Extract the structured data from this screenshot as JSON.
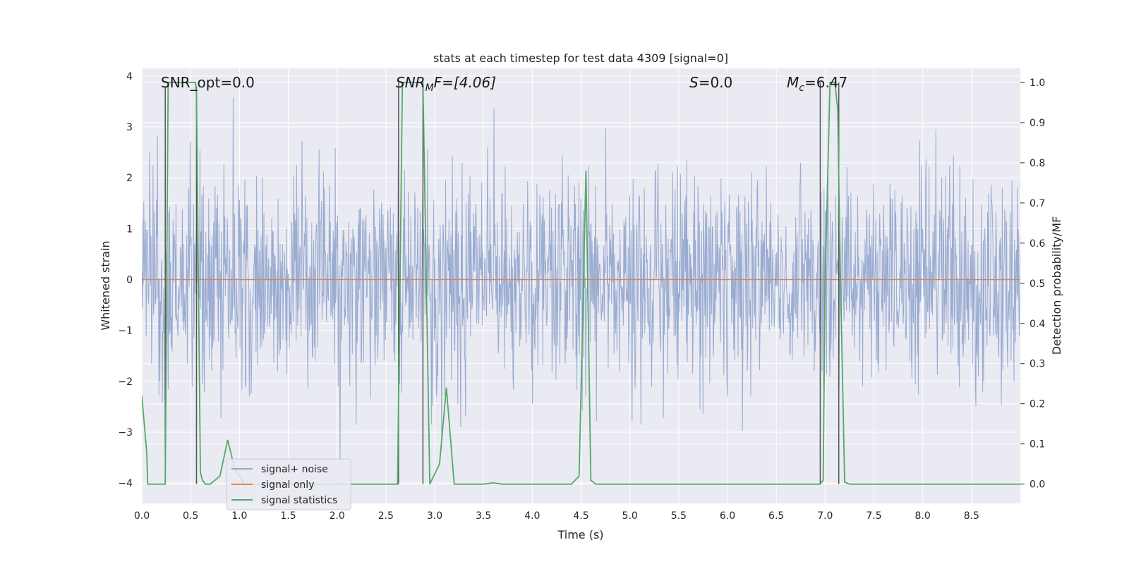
{
  "chart_data": {
    "type": "line",
    "title": "stats at each timestep for test data 4309 [signal=0]",
    "xlabel": "Time (s)",
    "ylabel": "Whitened strain",
    "y2label": "Detection probability/MF",
    "xlim": [
      0.0,
      9.0
    ],
    "ylim": [
      -4.4,
      4.15
    ],
    "y2lim": [
      -0.048,
      1.035
    ],
    "x_ticks": [
      "0.0",
      "0.5",
      "1.0",
      "1.5",
      "2.0",
      "2.5",
      "3.0",
      "3.5",
      "4.0",
      "4.5",
      "5.0",
      "5.5",
      "6.0",
      "6.5",
      "7.0",
      "7.5",
      "8.0",
      "8.5"
    ],
    "y_ticks": [
      "4",
      "3",
      "2",
      "1",
      "0",
      "−1",
      "−2",
      "−3",
      "−4"
    ],
    "y2_ticks": [
      "1.0",
      "0.9",
      "0.8",
      "0.7",
      "0.6",
      "0.5",
      "0.4",
      "0.3",
      "0.2",
      "0.1",
      "0.0"
    ],
    "grid": true,
    "legend_position": "lower-left",
    "annotations": [
      "SNR_opt=0.0",
      "SNR",
      "M",
      "F=[4.06]",
      "S",
      "=0.0",
      "M",
      "c",
      "=6.47"
    ],
    "colors": {
      "noise": "#95a8cf",
      "signal_only": "#dd8452",
      "statistics": "#55a868",
      "vline": "#555555",
      "background": "#eaeaf2",
      "grid": "#ffffff"
    },
    "series": [
      {
        "name": "signal+ noise",
        "axis": "left",
        "description": "whitened noise, roughly Gaussian, amplitude within about -4 to +4 with spikes",
        "seed": 4309,
        "samples": 1800,
        "std": 1.05
      },
      {
        "name": "signal only",
        "axis": "left",
        "x": [
          0.0,
          9.0
        ],
        "y": [
          0.0,
          0.0
        ]
      },
      {
        "name": "signal statistics",
        "axis": "right",
        "x": [
          0.0,
          0.05,
          0.06,
          0.2,
          0.24,
          0.27,
          0.31,
          0.4,
          0.55,
          0.56,
          0.58,
          0.6,
          0.62,
          0.65,
          0.7,
          0.8,
          0.88,
          0.95,
          1.05,
          1.1,
          1.5,
          1.9,
          2.0,
          2.5,
          2.6,
          2.62,
          2.67,
          2.72,
          2.8,
          2.88,
          2.95,
          3.05,
          3.12,
          3.2,
          3.3,
          3.5,
          3.6,
          3.7,
          4.0,
          4.4,
          4.48,
          4.55,
          4.6,
          4.65,
          5.0,
          6.0,
          6.9,
          6.95,
          6.98,
          7.0,
          7.05,
          7.1,
          7.13,
          7.15,
          7.2,
          7.25,
          8.0,
          9.0
        ],
        "y": [
          0.22,
          0.08,
          0.0,
          0.0,
          0.0,
          1.0,
          1.0,
          1.0,
          1.0,
          0.97,
          0.5,
          0.03,
          0.01,
          0.0,
          0.0,
          0.02,
          0.11,
          0.04,
          0.0,
          0.0,
          0.0,
          0.0,
          0.0,
          0.0,
          0.0,
          0.0,
          1.0,
          1.0,
          1.0,
          1.0,
          0.0,
          0.05,
          0.24,
          0.0,
          0.0,
          0.0,
          0.003,
          0.0,
          0.0,
          0.0,
          0.02,
          0.78,
          0.01,
          0.0,
          0.0,
          0.0,
          0.0,
          0.0,
          0.01,
          0.5,
          1.0,
          1.0,
          0.93,
          0.6,
          0.005,
          0.0,
          0.0,
          0.0
        ]
      }
    ],
    "vertical_lines": [
      {
        "x": 0.24,
        "y_top": 0.99,
        "y_bottom": 0.0
      },
      {
        "x": 0.56,
        "y_top": 0.99,
        "y_bottom": 0.0
      },
      {
        "x": 2.63,
        "y_top": 1.0,
        "y_bottom": 0.0
      },
      {
        "x": 2.88,
        "y_top": 1.0,
        "y_bottom": 0.0
      },
      {
        "x": 6.95,
        "y_top": 1.0,
        "y_bottom": 0.0
      },
      {
        "x": 7.14,
        "y_top": 1.0,
        "y_bottom": 0.0
      }
    ],
    "legend": [
      "signal+ noise",
      "signal only",
      "signal statistics"
    ]
  }
}
